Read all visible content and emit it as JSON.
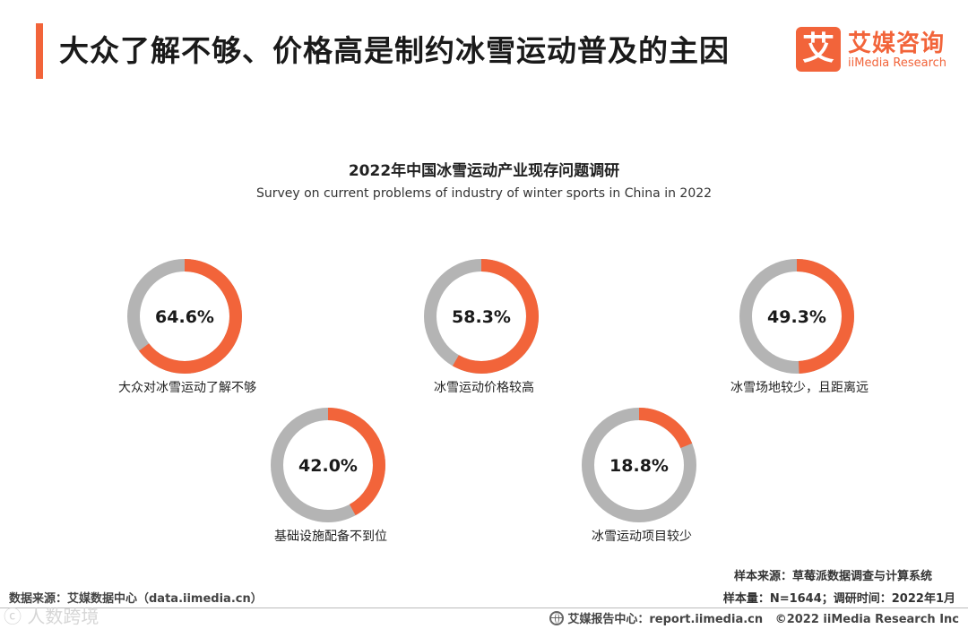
{
  "header": {
    "title": "大众了解不够、价格高是制约冰雪运动普及的主因",
    "logo_mark": "艾",
    "logo_cn": "艾媒咨询",
    "logo_en": "iiMedia Research"
  },
  "colors": {
    "accent": "#f2643a",
    "remainder": "#b4b4b4"
  },
  "chart_data": {
    "type": "pie",
    "variant": "donut",
    "title": "2022年中国冰雪运动产业现存问题调研",
    "subtitle": "Survey on current problems of industry of winter sports in China in 2022",
    "unit": "%",
    "categories": [
      "大众对冰雪运动了解不够",
      "冰雪运动价格较高",
      "冰雪场地较少，且距离远",
      "基础设施配备不到位",
      "冰雪运动项目较少"
    ],
    "values": [
      64.6,
      58.3,
      49.3,
      42.0,
      18.8
    ],
    "display": [
      "64.6%",
      "58.3%",
      "49.3%",
      "42.0%",
      "18.8%"
    ]
  },
  "footer": {
    "sample_source": "样本来源：草莓派数据调查与计算系统",
    "sample_size": "样本量：N=1644；调研时间：2022年1月",
    "data_source": "数据来源：艾媒数据中心（data.iimedia.cn）",
    "watermark": "ⓒ 人数跨境",
    "report_center": "艾媒报告中心：report.iimedia.cn",
    "copyright": "©2022  iiMedia Research  Inc"
  }
}
